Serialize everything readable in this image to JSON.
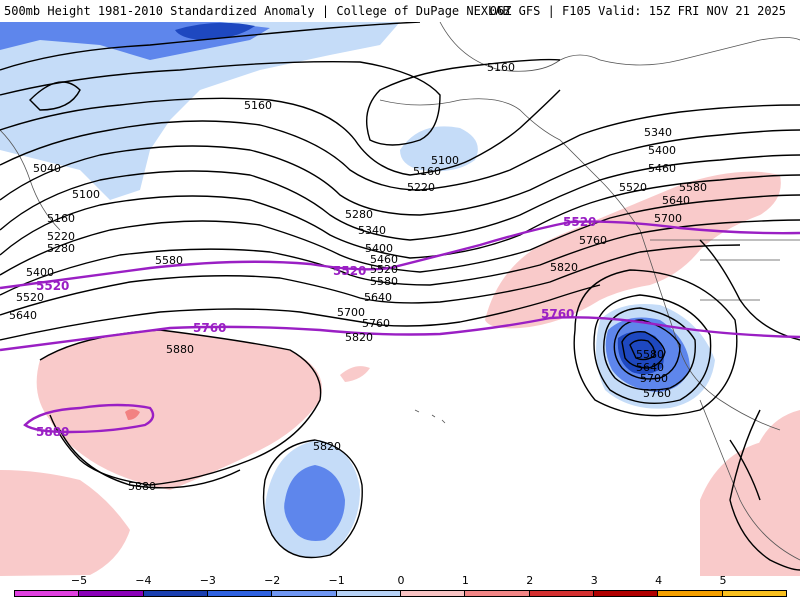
{
  "header": {
    "left_text": "500mb Height 1981-2010 Standardized Anomaly | College of DuPage NEXLAB",
    "right_text": "06Z GFS | F105 Valid: 15Z FRI NOV 21 2025"
  },
  "contour_labels": [
    "5160",
    "5160",
    "5040",
    "5100",
    "5100",
    "5160",
    "5220",
    "5280",
    "5340",
    "5400",
    "5460",
    "5520",
    "5580",
    "5640",
    "5700",
    "5760",
    "5820",
    "5160",
    "5220",
    "5280",
    "5400",
    "5520",
    "5640",
    "5580",
    "5340",
    "5400",
    "5460",
    "5520",
    "5580",
    "5640",
    "5700",
    "5760",
    "5820",
    "5580",
    "5640",
    "5700",
    "5760",
    "5880",
    "5880",
    "5820"
  ],
  "highlight_contours": {
    "c5520_left": "5520",
    "c5520_mid": "5520",
    "c5520_right": "5520",
    "c5760_left": "5760",
    "c5760_right": "5760",
    "c5880": "5880"
  },
  "legend": {
    "ticks": [
      "−5",
      "−4",
      "−3",
      "−2",
      "−1",
      "0",
      "1",
      "2",
      "3",
      "4",
      "5"
    ],
    "colors": [
      "#e040e0",
      "#8a00b8",
      "#1a3fb0",
      "#2f62e0",
      "#6f96f2",
      "#b7d3f7",
      "#f9c4c4",
      "#f28686",
      "#d43030",
      "#b00000",
      "#f5a000",
      "#f8c020"
    ]
  },
  "colors": {
    "highlight_contour": "#9a1fc4",
    "contour": "#000000",
    "neg1": "#c5dcf8",
    "neg2": "#5e86ec",
    "neg3": "#1e48c0",
    "pos1": "#f9caca",
    "pos2": "#f28282"
  }
}
